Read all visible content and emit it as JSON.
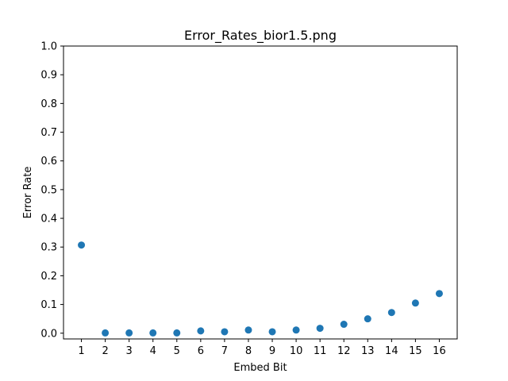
{
  "chart_data": {
    "type": "scatter",
    "title": "Error_Rates_bior1.5.png",
    "xlabel": "Embed Bit",
    "ylabel": "Error Rate",
    "x": [
      1,
      2,
      3,
      4,
      5,
      6,
      7,
      8,
      9,
      10,
      11,
      12,
      13,
      14,
      15,
      16
    ],
    "y": [
      0.307,
      0.001,
      0.001,
      0.001,
      0.001,
      0.008,
      0.005,
      0.011,
      0.005,
      0.011,
      0.017,
      0.031,
      0.05,
      0.072,
      0.105,
      0.138
    ],
    "xticks": [
      "1",
      "2",
      "3",
      "4",
      "5",
      "6",
      "7",
      "8",
      "9",
      "10",
      "11",
      "12",
      "13",
      "14",
      "15",
      "16"
    ],
    "yticks": [
      "0.0",
      "0.1",
      "0.2",
      "0.3",
      "0.4",
      "0.5",
      "0.6",
      "0.7",
      "0.8",
      "0.9",
      "1.0"
    ],
    "xlim": [
      0.25,
      16.75
    ],
    "ylim": [
      -0.02,
      1.0
    ],
    "grid": false,
    "marker_color": "#1f77b4"
  }
}
